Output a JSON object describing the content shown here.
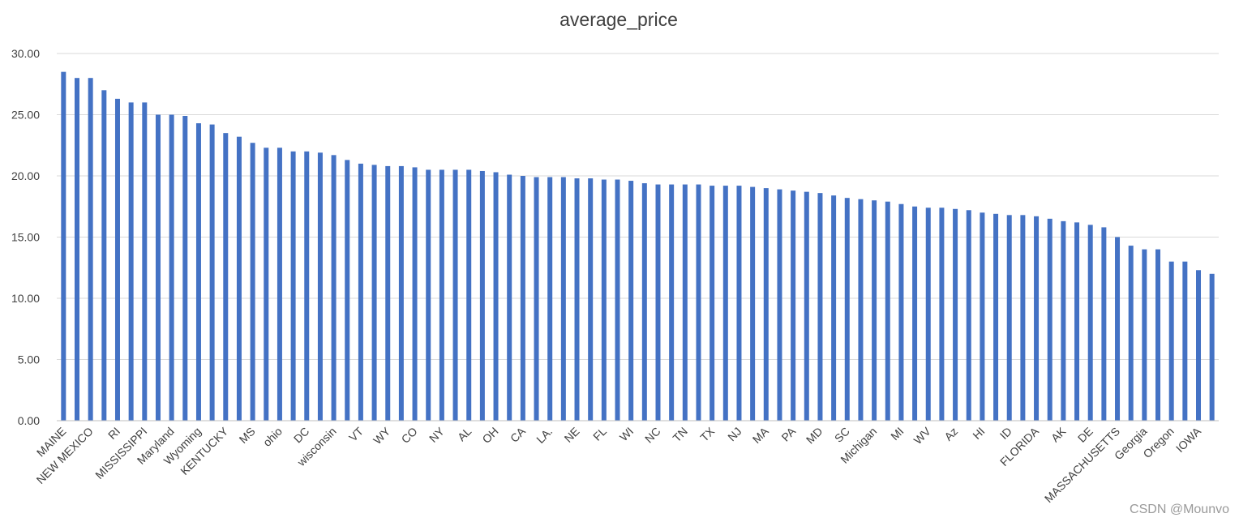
{
  "watermark": "CSDN @Mounvo",
  "colors": {
    "bar": "#4472C4",
    "grid": "#d9d9d9",
    "text": "#404040"
  },
  "chart_data": {
    "type": "bar",
    "title": "average_price",
    "xlabel": "",
    "ylabel": "",
    "ylim": [
      0,
      30
    ],
    "yticks": [
      "0.00",
      "5.00",
      "10.00",
      "15.00",
      "20.00",
      "25.00",
      "30.00"
    ],
    "grid": true,
    "legend": "none",
    "categories": [
      "MAINE",
      "",
      "NEW MEXICO",
      "",
      "RI",
      "",
      "MISSISSIPPI",
      "",
      "Maryland",
      "",
      "Wyoming",
      "",
      "KENTUCKY",
      "",
      "MS",
      "",
      "ohio",
      "",
      "DC",
      "",
      "wisconsin",
      "",
      "VT",
      "",
      "WY",
      "",
      "CO",
      "",
      "NY",
      "",
      "AL",
      "",
      "OH",
      "",
      "CA",
      "",
      "LA.",
      "",
      "NE",
      "",
      "FL",
      "",
      "WI",
      "",
      "NC",
      "",
      "TN",
      "",
      "TX",
      "",
      "NJ",
      "",
      "MA",
      "",
      "PA",
      "",
      "MD",
      "",
      "SC",
      "",
      "Michigan",
      "",
      "MI",
      "",
      "WV",
      "",
      "Az",
      "",
      "HI",
      "",
      "ID",
      "",
      "FLORIDA",
      "",
      "AK",
      "",
      "DE",
      "",
      "MASSACHUSETTS",
      "",
      "Georgia",
      "",
      "Oregon",
      "",
      "IOWA",
      ""
    ],
    "values": [
      28.5,
      28.0,
      28.0,
      27.0,
      26.3,
      26.0,
      26.0,
      25.0,
      25.0,
      24.9,
      24.3,
      24.2,
      23.5,
      23.2,
      22.7,
      22.3,
      22.3,
      22.0,
      22.0,
      21.9,
      21.7,
      21.3,
      21.0,
      20.9,
      20.8,
      20.8,
      20.7,
      20.5,
      20.5,
      20.5,
      20.5,
      20.4,
      20.3,
      20.1,
      20.0,
      19.9,
      19.9,
      19.9,
      19.8,
      19.8,
      19.7,
      19.7,
      19.6,
      19.4,
      19.3,
      19.3,
      19.3,
      19.3,
      19.2,
      19.2,
      19.2,
      19.1,
      19.0,
      18.9,
      18.8,
      18.7,
      18.6,
      18.4,
      18.2,
      18.1,
      18.0,
      17.9,
      17.7,
      17.5,
      17.4,
      17.4,
      17.3,
      17.2,
      17.0,
      16.9,
      16.8,
      16.8,
      16.7,
      16.5,
      16.3,
      16.2,
      16.0,
      15.8,
      15.0,
      14.3,
      14.0,
      14.0,
      13.0,
      13.0,
      12.3,
      12.0
    ]
  }
}
